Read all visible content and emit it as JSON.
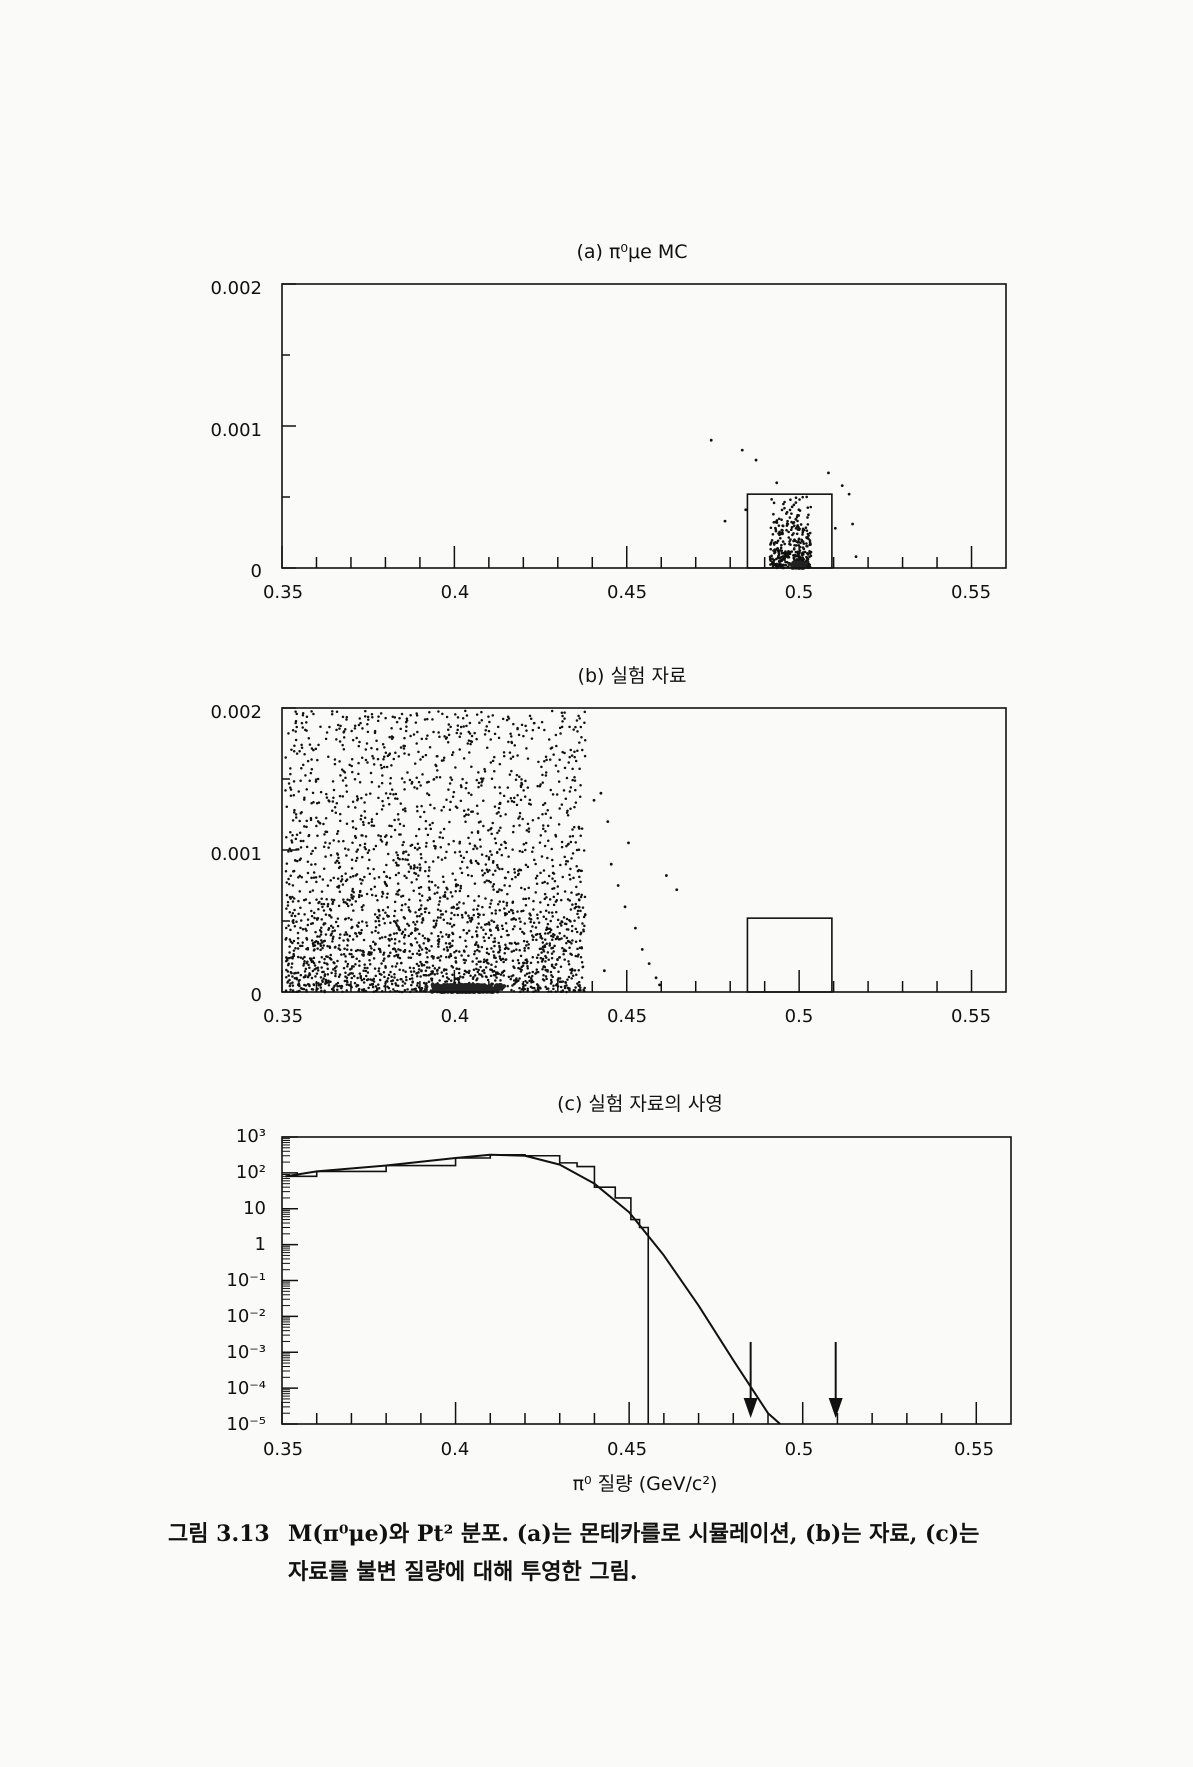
{
  "figure": {
    "caption_label": "그림 3.13",
    "caption_line1": "M(π⁰μe)와 Pt² 분포. (a)는 몬테카를로 시뮬레이션, (b)는 자료, (c)는",
    "caption_line2": "자료를 불변 질량에 대해 투영한 그림."
  },
  "chart_data": [
    {
      "id": "a",
      "type": "scatter",
      "title": "(a)  π⁰μe MC",
      "xlabel": "",
      "ylabel": "",
      "xlim": [
        0.35,
        0.56
      ],
      "ylim": [
        0,
        0.002
      ],
      "xticks": [
        "0.35",
        "0.4",
        "0.45",
        "0.5",
        "0.55"
      ],
      "yticks": [
        "0",
        "0.001",
        "0.002"
      ],
      "signal_box": {
        "x": [
          0.485,
          0.5095
        ],
        "y": [
          0,
          0.00052
        ]
      },
      "cluster": {
        "x_center": 0.4975,
        "x_width": 0.012,
        "y_scale": 0.00018,
        "n": 340
      },
      "points": [
        [
          0.4745,
          0.0009
        ],
        [
          0.4785,
          0.00033
        ],
        [
          0.4835,
          0.00083
        ],
        [
          0.4845,
          0.00041
        ],
        [
          0.4875,
          0.00076
        ],
        [
          0.4935,
          0.0006
        ],
        [
          0.5085,
          0.00067
        ],
        [
          0.5125,
          0.00058
        ],
        [
          0.5145,
          0.00052
        ],
        [
          0.5155,
          0.00031
        ],
        [
          0.5105,
          0.00028
        ],
        [
          0.5165,
          8e-05
        ]
      ]
    },
    {
      "id": "b",
      "type": "scatter",
      "title": "(b)  실험 자료",
      "xlabel": "",
      "ylabel": "",
      "xlim": [
        0.35,
        0.56
      ],
      "ylim": [
        0,
        0.002
      ],
      "xticks": [
        "0.35",
        "0.4",
        "0.45",
        "0.5",
        "0.55"
      ],
      "yticks": [
        "0",
        "0.001",
        "0.002"
      ],
      "signal_box": {
        "x": [
          0.485,
          0.5095
        ],
        "y": [
          0,
          0.00052
        ]
      },
      "cluster": {
        "x_range": [
          0.351,
          0.438
        ],
        "n": 2600
      },
      "points": [
        [
          0.4405,
          0.00135
        ],
        [
          0.4425,
          0.0014
        ],
        [
          0.4445,
          0.0012
        ],
        [
          0.4455,
          0.0009
        ],
        [
          0.4475,
          0.00075
        ],
        [
          0.4495,
          0.0006
        ],
        [
          0.4525,
          0.00045
        ],
        [
          0.4545,
          0.0003
        ],
        [
          0.4565,
          0.0002
        ],
        [
          0.4585,
          0.0001
        ],
        [
          0.4595,
          5e-05
        ],
        [
          0.4615,
          0.00082
        ],
        [
          0.4645,
          0.00072
        ],
        [
          0.4505,
          0.00105
        ],
        [
          0.4435,
          0.00015
        ]
      ]
    },
    {
      "id": "c",
      "type": "line",
      "title": "(c)  실험 자료의 사영",
      "xlabel": "π⁰ 질량 (GeV/c²)",
      "ylabel": "",
      "scale_y": "log",
      "xlim": [
        0.35,
        0.56
      ],
      "ylim_exp": [
        -5,
        3
      ],
      "xticks": [
        "0.35",
        "0.4",
        "0.45",
        "0.5",
        "0.55"
      ],
      "ytick_labels": [
        "10⁻⁵",
        "10⁻⁴",
        "10⁻³",
        "10⁻²",
        "10⁻¹",
        "1",
        "10",
        "10²",
        "10³"
      ],
      "fit_curve": [
        [
          0.351,
          80
        ],
        [
          0.36,
          110
        ],
        [
          0.38,
          160
        ],
        [
          0.4,
          260
        ],
        [
          0.41,
          320
        ],
        [
          0.42,
          300
        ],
        [
          0.43,
          170
        ],
        [
          0.44,
          50
        ],
        [
          0.45,
          8
        ],
        [
          0.46,
          0.5
        ],
        [
          0.47,
          0.02
        ],
        [
          0.48,
          0.0006
        ],
        [
          0.49,
          2e-05
        ],
        [
          0.4935,
          1e-05
        ]
      ],
      "histogram": [
        [
          0.351,
          80
        ],
        [
          0.36,
          110
        ],
        [
          0.38,
          160
        ],
        [
          0.4,
          260
        ],
        [
          0.41,
          320
        ],
        [
          0.42,
          300
        ],
        [
          0.43,
          190
        ],
        [
          0.435,
          150
        ],
        [
          0.44,
          40
        ],
        [
          0.446,
          20
        ],
        [
          0.4505,
          5
        ],
        [
          0.453,
          3
        ],
        [
          0.4555,
          1e-05
        ]
      ],
      "arrows_x": [
        0.485,
        0.5095
      ]
    }
  ]
}
